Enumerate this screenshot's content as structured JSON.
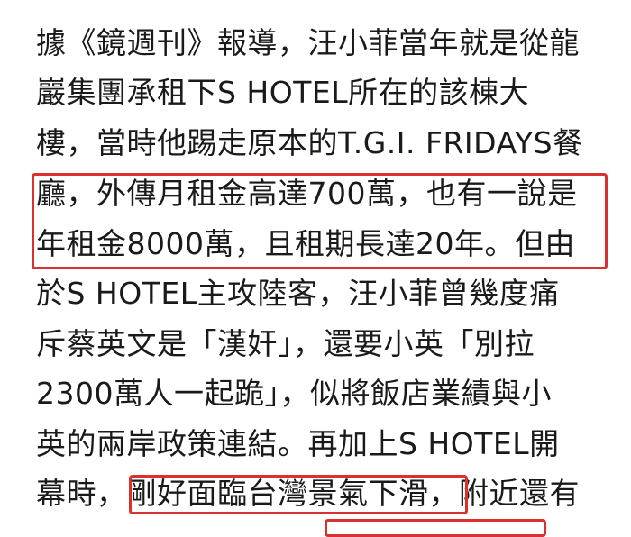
{
  "article": {
    "lines": [
      "據《鏡週刊》報導，汪小菲當年就是從龍",
      "巖集團承租下S HOTEL所在的該棟大",
      "樓，當時他踢走原本的T.G.I. FRIDAYS餐",
      "廳，外傳月租金高達700萬，也有一說是",
      "年租金8000萬，且租期長達20年。但由",
      "於S HOTEL主攻陸客，汪小菲曾幾度痛",
      "斥蔡英文是「漢奸」，還要小英「別拉",
      "2300萬人一起跪」，似將飯店業績與小",
      "英的兩岸政策連結。再加上S HOTEL開"
    ],
    "last_line": {
      "before": "幕時，",
      "highlighted": "剛好面臨台灣景氣下滑",
      "after": "，附近還有"
    }
  },
  "highlight_color": "#d8312f"
}
